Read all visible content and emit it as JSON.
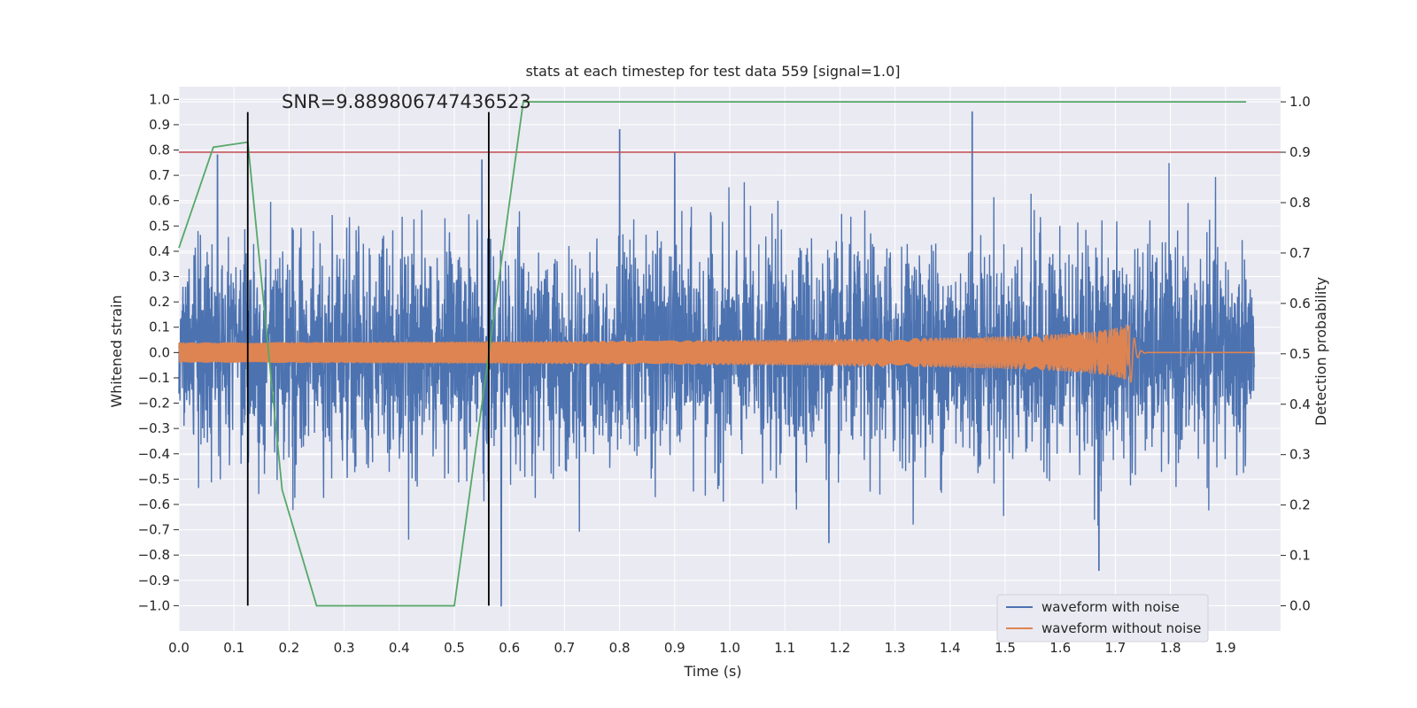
{
  "chart_data": {
    "type": "line",
    "title": "stats at each timestep for test data 559 [signal=1.0]",
    "xlabel": "Time (s)",
    "ylabel": "Whitened strain",
    "y2label": "Detection probability",
    "annotation": "SNR=9.889806747436523",
    "xlim": [
      0.0,
      2.0
    ],
    "ylim": [
      -1.1,
      1.05
    ],
    "y2lim": [
      -0.05,
      1.03
    ],
    "xticks": [
      "0.0",
      "0.1",
      "0.2",
      "0.3",
      "0.4",
      "0.5",
      "0.6",
      "0.7",
      "0.8",
      "0.9",
      "1.0",
      "1.1",
      "1.2",
      "1.3",
      "1.4",
      "1.5",
      "1.6",
      "1.7",
      "1.8",
      "1.9"
    ],
    "yticks": [
      "1.0",
      "0.9",
      "0.8",
      "0.7",
      "0.6",
      "0.5",
      "0.4",
      "0.3",
      "0.2",
      "0.1",
      "0.0",
      "−0.1",
      "−0.2",
      "−0.3",
      "−0.4",
      "−0.5",
      "−0.6",
      "−0.7",
      "−0.8",
      "−0.9",
      "−1.0"
    ],
    "y2ticks": [
      "1.0",
      "0.9",
      "0.8",
      "0.7",
      "0.6",
      "0.5",
      "0.4",
      "0.3",
      "0.2",
      "0.1",
      "0.0"
    ],
    "grid": true,
    "legend_position": "lower-right",
    "series": [
      {
        "name": "waveform with noise",
        "color": "#4c72b0",
        "axis": "left",
        "description_range": [
          -1.0,
          0.95
        ]
      },
      {
        "name": "waveform without noise",
        "color": "#dd8452",
        "axis": "left",
        "chirp_merger_time": 1.73
      },
      {
        "color": "#55a868",
        "axis": "right",
        "x": [
          0.0,
          0.0625,
          0.125,
          0.1875,
          0.25,
          0.5,
          0.5625,
          0.625,
          1.9375
        ],
        "y": [
          0.71,
          0.91,
          0.92,
          0.23,
          0.0,
          0.0,
          0.5,
          1.0,
          1.0
        ]
      }
    ],
    "threshold_line": {
      "axis": "right",
      "value": 0.9,
      "color": "#c44e52"
    },
    "vertical_markers": {
      "x": [
        0.125,
        0.5625
      ],
      "color": "#000000",
      "ymin": -1.0,
      "ymax": 0.95
    }
  }
}
